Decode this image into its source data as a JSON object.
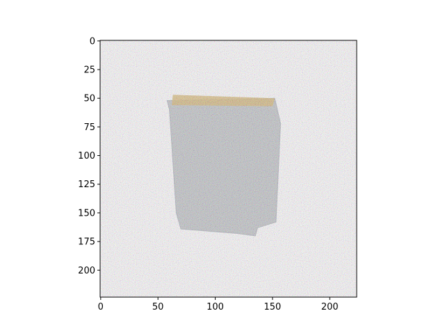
{
  "image_display": {
    "x_range": [
      0,
      224
    ],
    "y_range": [
      0,
      224
    ],
    "y_inverted": true,
    "x_ticks": [
      0,
      50,
      100,
      150,
      200
    ],
    "y_ticks": [
      0,
      25,
      50,
      75,
      100,
      125,
      150,
      175,
      200
    ],
    "grid": false,
    "colors": {
      "background": "#fdfbfd",
      "object_body": "#c2c4c8",
      "object_top": "#d8b878",
      "object_edge": "#b0b4bc"
    }
  }
}
